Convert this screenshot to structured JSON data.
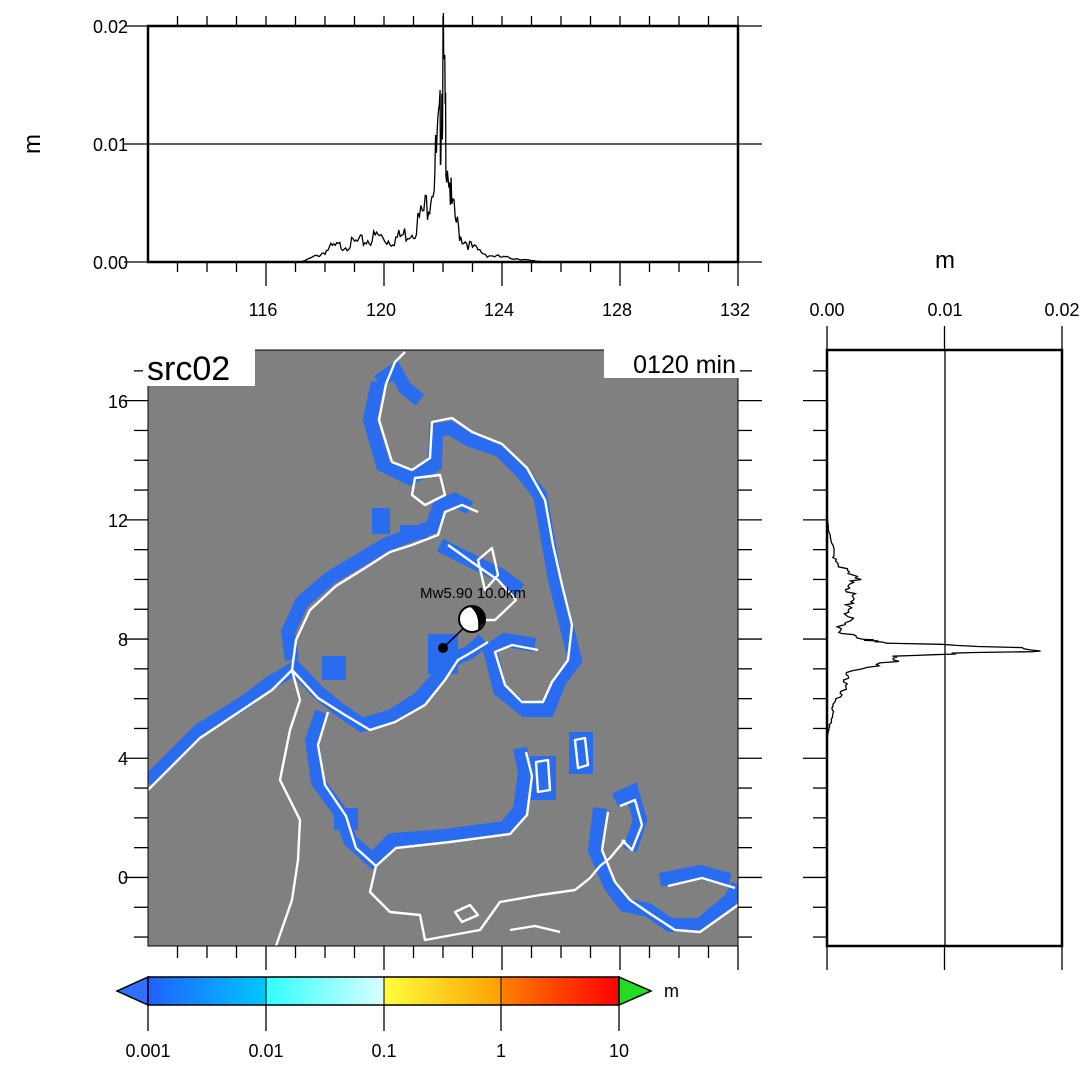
{
  "top_panel": {
    "ylabel": "m",
    "y_ticks": [
      "0.00",
      "0.01",
      "0.02"
    ],
    "x_ticks": [
      "116",
      "120",
      "124",
      "128",
      "132"
    ]
  },
  "right_panel": {
    "xlabel": "m",
    "x_ticks": [
      "0.00",
      "0.01",
      "0.02"
    ]
  },
  "map": {
    "label": "src02",
    "time": "0120 min",
    "event": "Mw5.90  10.0km",
    "lat_ticks": [
      "16",
      "12",
      "8",
      "4",
      "0"
    ]
  },
  "colorbar": {
    "unit": "m",
    "ticks": [
      "0.001",
      "0.01",
      "0.1",
      "1",
      "10"
    ],
    "colors": [
      "#2060ff",
      "#00c0ff",
      "#40ffff",
      "#c0ffff",
      "#ffff40",
      "#ffa000",
      "#ff6000",
      "#ff0000"
    ],
    "over_color": "#22dd22",
    "under_color": "#3070ff"
  },
  "colors": {
    "sea": "#808080",
    "wave": "#2a6cf0",
    "coast": "#ffffff"
  },
  "chart_data": [
    {
      "type": "line",
      "title": "",
      "xlabel": "",
      "ylabel": "m",
      "xlim": [
        112,
        132
      ],
      "ylim": [
        0,
        0.02
      ],
      "grid": "y=0.01 line",
      "series": [
        {
          "x": [
            117.2,
            117.8,
            118.2,
            118.6,
            119.0,
            119.4,
            119.8,
            120.2,
            120.6,
            121.0,
            121.4,
            121.7,
            121.9,
            122.0,
            122.1,
            122.3,
            122.6,
            123.0,
            123.5,
            124.0,
            124.5,
            125.0,
            125.6
          ],
          "y": [
            0,
            0.0006,
            0.0012,
            0.0014,
            0.0016,
            0.0018,
            0.0022,
            0.0018,
            0.0022,
            0.0028,
            0.0045,
            0.0075,
            0.011,
            0.0168,
            0.011,
            0.0045,
            0.0022,
            0.0012,
            0.0006,
            0.0004,
            0.0003,
            0.0001,
            0
          ]
        }
      ]
    },
    {
      "type": "line",
      "title": "",
      "xlabel": "m",
      "ylabel": "",
      "xlim": [
        0,
        0.02
      ],
      "ylim": [
        -2.3,
        17.7
      ],
      "grid": "x=0.01 line",
      "series": [
        {
          "x": [
            0,
            0.0002,
            0.0006,
            0.0015,
            0.0025,
            0.0018,
            0.0022,
            0.0015,
            0.0012,
            0.0025,
            0.006,
            0.0168,
            0.006,
            0.0025,
            0.0015,
            0.0008,
            0.0004,
            0.0002,
            0
          ],
          "y": [
            12.2,
            11.5,
            10.8,
            10.3,
            9.9,
            9.4,
            9.0,
            8.6,
            8.3,
            8.0,
            7.9,
            7.6,
            7.4,
            7.0,
            6.5,
            6.0,
            5.5,
            5.0,
            4.7
          ]
        }
      ]
    }
  ]
}
